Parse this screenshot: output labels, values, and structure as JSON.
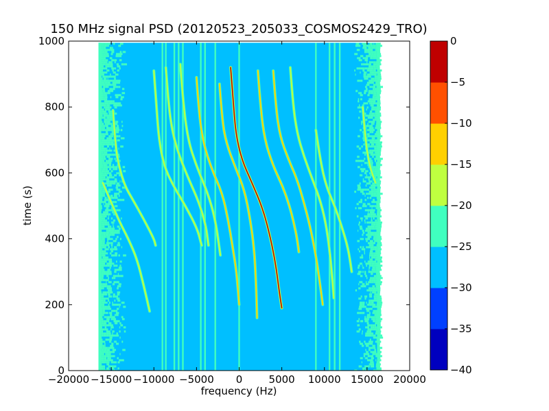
{
  "chart_data": {
    "type": "heatmap",
    "title": "150 MHz signal PSD (20120523_205033_COSMOS2429_TRO)",
    "xlabel": "frequency (Hz)",
    "ylabel": "time (s)",
    "xlim": [
      -20000,
      20000
    ],
    "ylim": [
      0,
      1000
    ],
    "x_ticks": [
      -20000,
      -15000,
      -10000,
      -5000,
      0,
      5000,
      10000,
      15000,
      20000
    ],
    "x_tick_labels": [
      "−20000",
      "−15000",
      "−10000",
      "−5000",
      "0",
      "5000",
      "10000",
      "15000",
      "20000"
    ],
    "y_ticks": [
      0,
      200,
      400,
      600,
      800,
      1000
    ],
    "y_tick_labels": [
      "0",
      "200",
      "400",
      "600",
      "800",
      "1000"
    ],
    "data_extent": {
      "x": [
        -16500,
        16500
      ],
      "y": [
        0,
        995
      ]
    },
    "colorbar": {
      "levels": [
        -40,
        -35,
        -30,
        -25,
        -20,
        -15,
        -10,
        -5,
        0
      ],
      "tick_labels": [
        "−40",
        "−35",
        "−30",
        "−25",
        "−20",
        "−15",
        "−10",
        "−5",
        "0"
      ],
      "colors": [
        "#0000bf",
        "#0040ff",
        "#00bfff",
        "#40ffbf",
        "#bfff40",
        "#ffd000",
        "#ff5000",
        "#bf0000"
      ]
    },
    "background_level_dB": -27.5,
    "edge_band_level_dB": -22.5,
    "vertical_lines": [
      {
        "x": -9000,
        "level": -22.5
      },
      {
        "x": -8600,
        "level": -22.5
      },
      {
        "x": -7600,
        "level": -22.5
      },
      {
        "x": -7100,
        "level": -22.5
      },
      {
        "x": -6600,
        "level": -22.5
      },
      {
        "x": -4500,
        "level": -22.5
      },
      {
        "x": -4000,
        "level": -22.5
      },
      {
        "x": -2800,
        "level": -22.5
      },
      {
        "x": 0,
        "level": -22.5
      },
      {
        "x": 9000,
        "level": -22.5
      },
      {
        "x": 10600,
        "level": -22.5
      },
      {
        "x": 11200,
        "level": -22.5
      },
      {
        "x": 11800,
        "level": -22.5
      }
    ],
    "doppler_tracks": [
      {
        "points": [
          [
            -14800,
            790
          ],
          [
            -14500,
            680
          ],
          [
            -14100,
            620
          ],
          [
            -13400,
            560
          ],
          [
            -12500,
            520
          ],
          [
            -11200,
            460
          ],
          [
            -10000,
            400
          ],
          [
            -9800,
            380
          ]
        ],
        "level": -17.5
      },
      {
        "points": [
          [
            -16000,
            570
          ],
          [
            -15000,
            510
          ],
          [
            -14000,
            450
          ],
          [
            -13000,
            400
          ],
          [
            -12000,
            340
          ],
          [
            -11200,
            260
          ],
          [
            -10500,
            180
          ]
        ],
        "level": -17.5
      },
      {
        "points": [
          [
            -10000,
            910
          ],
          [
            -9700,
            800
          ],
          [
            -9400,
            700
          ],
          [
            -8800,
            620
          ],
          [
            -7700,
            560
          ],
          [
            -6300,
            500
          ],
          [
            -4900,
            430
          ],
          [
            -4400,
            380
          ]
        ],
        "level": -17.5
      },
      {
        "points": [
          [
            -8600,
            920
          ],
          [
            -8300,
            810
          ],
          [
            -7800,
            720
          ],
          [
            -7000,
            650
          ],
          [
            -5900,
            580
          ],
          [
            -4700,
            510
          ],
          [
            -3900,
            440
          ],
          [
            -3600,
            380
          ]
        ],
        "level": -17.5
      },
      {
        "points": [
          [
            -6900,
            930
          ],
          [
            -6600,
            820
          ],
          [
            -6000,
            700
          ],
          [
            -5000,
            620
          ],
          [
            -3700,
            540
          ],
          [
            -2800,
            460
          ],
          [
            -2200,
            350
          ]
        ],
        "level": -17.5
      },
      {
        "points": [
          [
            -5000,
            890
          ],
          [
            -4700,
            780
          ],
          [
            -4200,
            690
          ],
          [
            -3200,
            610
          ],
          [
            -2000,
            540
          ],
          [
            -1300,
            460
          ],
          [
            -800,
            380
          ],
          [
            -300,
            300
          ],
          [
            0,
            200
          ]
        ],
        "level": -12.5
      },
      {
        "points": [
          [
            -2300,
            870
          ],
          [
            -2000,
            760
          ],
          [
            -1500,
            690
          ],
          [
            -500,
            620
          ],
          [
            600,
            550
          ],
          [
            1300,
            460
          ],
          [
            1800,
            360
          ],
          [
            2000,
            250
          ],
          [
            2100,
            160
          ]
        ],
        "level": -12.5
      },
      {
        "points": [
          [
            -1000,
            920
          ],
          [
            -700,
            820
          ],
          [
            -400,
            720
          ],
          [
            300,
            640
          ],
          [
            1500,
            570
          ],
          [
            2800,
            490
          ],
          [
            3700,
            400
          ],
          [
            4300,
            320
          ],
          [
            4700,
            240
          ],
          [
            5000,
            190
          ]
        ],
        "level": -2.5
      },
      {
        "points": [
          [
            2200,
            910
          ],
          [
            2500,
            800
          ],
          [
            3000,
            700
          ],
          [
            4000,
            620
          ],
          [
            5100,
            560
          ],
          [
            5900,
            500
          ],
          [
            6400,
            450
          ],
          [
            6800,
            400
          ],
          [
            7000,
            360
          ]
        ],
        "level": -12.5
      },
      {
        "points": [
          [
            4000,
            910
          ],
          [
            4300,
            800
          ],
          [
            4800,
            710
          ],
          [
            5800,
            640
          ],
          [
            6800,
            580
          ],
          [
            7600,
            510
          ],
          [
            8300,
            440
          ],
          [
            9000,
            350
          ],
          [
            9500,
            260
          ],
          [
            9800,
            200
          ]
        ],
        "level": -12.5
      },
      {
        "points": [
          [
            6000,
            920
          ],
          [
            6300,
            810
          ],
          [
            6800,
            720
          ],
          [
            7600,
            650
          ],
          [
            8600,
            580
          ],
          [
            9600,
            510
          ],
          [
            10300,
            430
          ],
          [
            10800,
            320
          ],
          [
            11100,
            220
          ]
        ],
        "level": -17.5
      },
      {
        "points": [
          [
            9000,
            730
          ],
          [
            9500,
            640
          ],
          [
            10200,
            560
          ],
          [
            11200,
            500
          ],
          [
            12000,
            440
          ],
          [
            12800,
            370
          ],
          [
            13200,
            300
          ]
        ],
        "level": -17.5
      },
      {
        "points": [
          [
            14500,
            800
          ],
          [
            14800,
            700
          ],
          [
            15300,
            620
          ],
          [
            16000,
            570
          ]
        ],
        "level": -17.5
      }
    ]
  }
}
